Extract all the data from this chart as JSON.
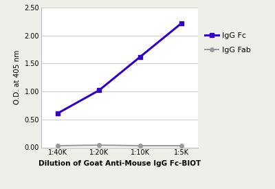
{
  "x_labels": [
    "1:40K",
    "1:20K",
    "1:10K",
    "1:5K"
  ],
  "x_values": [
    1,
    2,
    3,
    4
  ],
  "igg_fc_values": [
    0.61,
    1.02,
    1.62,
    2.22
  ],
  "igg_fab_values": [
    0.03,
    0.04,
    0.03,
    0.03
  ],
  "igg_fc_color": "#3300bb",
  "igg_fab_color": "#999999",
  "xlabel": "Dilution of Goat Anti-Mouse IgG Fc-BIOT",
  "ylabel": "O.D. at 405 nm",
  "ylim": [
    0.0,
    2.5
  ],
  "yticks": [
    0.0,
    0.5,
    1.0,
    1.5,
    2.0,
    2.5
  ],
  "legend_labels": [
    "IgG Fc",
    "IgG Fab"
  ],
  "bg_color": "#efefea",
  "plot_bg_color": "#ffffff",
  "xlabel_fontsize": 7.5,
  "ylabel_fontsize": 7.5,
  "tick_fontsize": 7.0,
  "legend_fontsize": 8.0
}
